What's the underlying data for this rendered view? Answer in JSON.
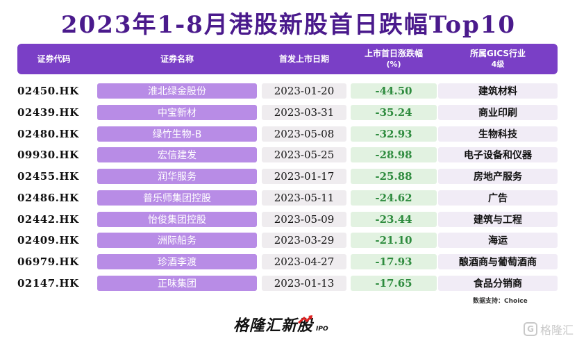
{
  "title": "2023年1-8月港股新股首日跌幅Top10",
  "headers": {
    "code": "证券代码",
    "name": "证券名称",
    "date": "首发上市日期",
    "change_line1": "上市首日涨跌幅",
    "change_line2": "(%)",
    "industry_line1": "所属GICS行业",
    "industry_line2": "4级"
  },
  "rows": [
    {
      "code": "02450.HK",
      "name": "淮北绿金股份",
      "date": "2023-01-20",
      "change": "-44.50",
      "industry": "建筑材料"
    },
    {
      "code": "02439.HK",
      "name": "中宝新材",
      "date": "2023-03-31",
      "change": "-35.24",
      "industry": "商业印刷"
    },
    {
      "code": "02480.HK",
      "name": "绿竹生物-B",
      "date": "2023-05-08",
      "change": "-32.93",
      "industry": "生物科技"
    },
    {
      "code": "09930.HK",
      "name": "宏信建发",
      "date": "2023-05-25",
      "change": "-28.98",
      "industry": "电子设备和仪器"
    },
    {
      "code": "02455.HK",
      "name": "润华服务",
      "date": "2023-01-17",
      "change": "-25.88",
      "industry": "房地产服务"
    },
    {
      "code": "02486.HK",
      "name": "普乐师集团控股",
      "date": "2023-05-11",
      "change": "-24.62",
      "industry": "广告"
    },
    {
      "code": "02442.HK",
      "name": "怡俊集团控股",
      "date": "2023-05-09",
      "change": "-23.44",
      "industry": "建筑与工程"
    },
    {
      "code": "02409.HK",
      "name": "洲际船务",
      "date": "2023-03-29",
      "change": "-21.10",
      "industry": "海运"
    },
    {
      "code": "06979.HK",
      "name": "珍酒李渡",
      "date": "2023-04-27",
      "change": "-17.93",
      "industry": "酿酒商与葡萄酒商"
    },
    {
      "code": "02147.HK",
      "name": "正味集团",
      "date": "2023-01-13",
      "change": "-17.65",
      "industry": "食品分销商"
    }
  ],
  "source": "数据支持：Choice",
  "logo": {
    "text": "格隆汇新股",
    "suffix": "IPO"
  },
  "watermark": {
    "icon": "G",
    "text": "格隆汇"
  },
  "colors": {
    "title": "#4a1a8c",
    "header_bg": "#7a3fc6",
    "name_bg": "#b88ce6",
    "change_text": "#2e8b3e",
    "change_bg": "#e2f2e1"
  }
}
